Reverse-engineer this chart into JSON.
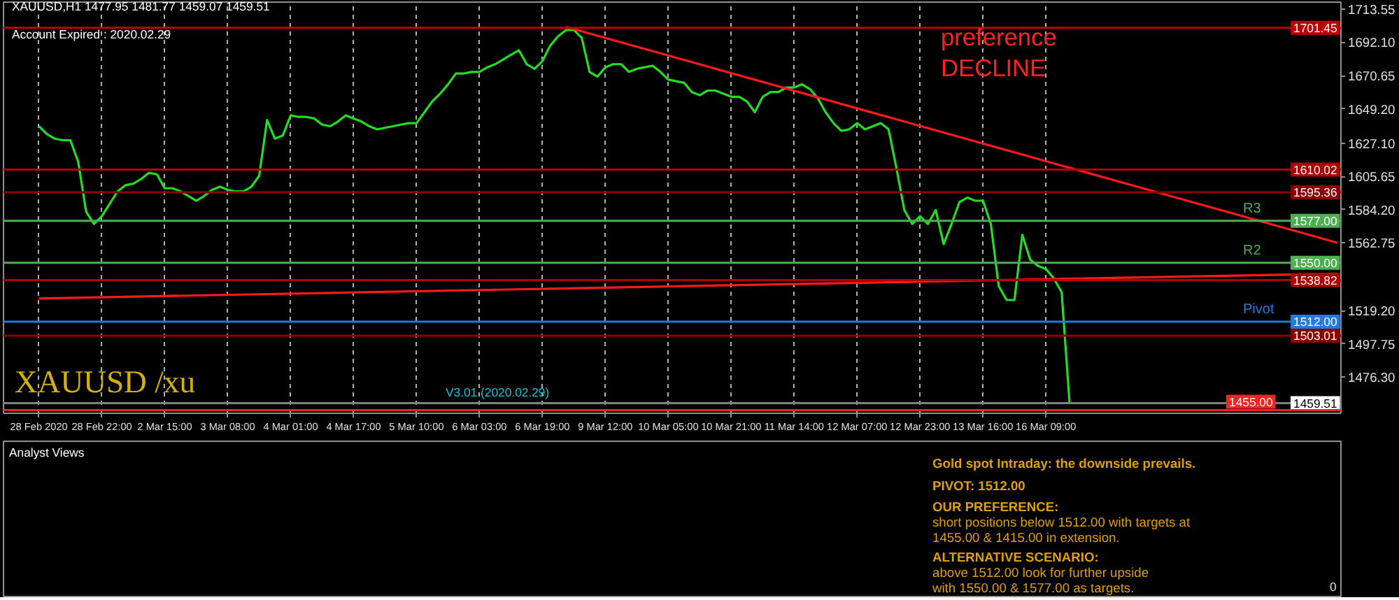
{
  "chart_data": [
    {
      "type": "line",
      "title": "XAUUSD,H1  1477.95 1481.77 1459.07 1459.51",
      "subtitle": "Account Expired : 2020.02.29",
      "annotations": [
        "XAUUSD /xu",
        "V3.01 (2020.02.29)",
        "preference",
        "DECLINE",
        {
          "text": "R3",
          "y": 1577.0
        },
        {
          "text": "R2",
          "y": 1550.0
        },
        {
          "text": "Pivot",
          "y": 1512.0
        }
      ],
      "categories": [
        "28 Feb 2020",
        null,
        null,
        null,
        null,
        null,
        null,
        null,
        "28 Feb 22:00",
        null,
        null,
        null,
        null,
        null,
        null,
        null,
        "2 Mar 15:00",
        null,
        null,
        null,
        null,
        null,
        null,
        null,
        "3 Mar 08:00",
        null,
        null,
        null,
        null,
        null,
        null,
        null,
        "4 Mar 01:00",
        null,
        null,
        null,
        null,
        null,
        null,
        null,
        "4 Mar 17:00",
        null,
        null,
        null,
        null,
        null,
        null,
        null,
        "5 Mar 10:00",
        null,
        null,
        null,
        null,
        null,
        null,
        null,
        "6 Mar 03:00",
        null,
        null,
        null,
        null,
        null,
        null,
        null,
        "6 Mar 19:00",
        null,
        null,
        null,
        null,
        null,
        null,
        null,
        "9 Mar 12:00",
        null,
        null,
        null,
        null,
        null,
        null,
        null,
        "10 Mar 05:00",
        null,
        null,
        null,
        null,
        null,
        null,
        null,
        "10 Mar 21:00",
        null,
        null,
        null,
        null,
        null,
        null,
        null,
        "11 Mar 14:00",
        null,
        null,
        null,
        null,
        null,
        null,
        null,
        "12 Mar 07:00",
        null,
        null,
        null,
        null,
        null,
        null,
        null,
        "12 Mar 23:00",
        null,
        null,
        null,
        null,
        null,
        null,
        null,
        "13 Mar 16:00",
        null,
        null,
        null,
        null,
        null,
        null,
        null,
        "16 Mar 09:00",
        null,
        null,
        null,
        null,
        null,
        null,
        null,
        null,
        null,
        null,
        null,
        null,
        null,
        null,
        null,
        null,
        null,
        null,
        null,
        null,
        null,
        null,
        null,
        null,
        null,
        null,
        null,
        null,
        null,
        null,
        null,
        null,
        null,
        null,
        null,
        null,
        null
      ],
      "series": [
        {
          "color": "#22dd22",
          "values": [
            1638,
            1633,
            1630,
            1629,
            1629,
            1615,
            1583,
            1575,
            1580,
            1588,
            1596,
            1600,
            1601,
            1604,
            1608,
            1607,
            1598,
            1598,
            1596,
            1593,
            1590,
            1593,
            1597,
            1599,
            1597,
            1596,
            1596,
            1599,
            1606,
            1642,
            1630,
            1632,
            1645,
            1644,
            1644,
            1643,
            1639,
            1638,
            1641,
            1645,
            1643,
            1641,
            1638,
            1636,
            1637,
            1638,
            1639,
            1640,
            1640,
            1647,
            1654,
            1659,
            1665,
            1672,
            1672,
            1673,
            1673,
            1676,
            1678,
            1681,
            1684,
            1687,
            1678,
            1675,
            1680,
            1690,
            1696,
            1700,
            1700,
            1695,
            1673,
            1670,
            1676,
            1678,
            1678,
            1673,
            1675,
            1676,
            1677,
            1673,
            1668,
            1667,
            1666,
            1660,
            1658,
            1661,
            1661,
            1659,
            1657,
            1657,
            1654,
            1647,
            1657,
            1660,
            1660,
            1663,
            1663,
            1665,
            1662,
            1656,
            1647,
            1640,
            1635,
            1636,
            1640,
            1636,
            1638,
            1640,
            1636,
            1611,
            1584,
            1575,
            1580,
            1575,
            1584,
            1562,
            1575,
            1589,
            1592,
            1590,
            1590,
            1575,
            1535,
            1526,
            1526,
            1568,
            1552,
            1548,
            1546,
            1540,
            1531,
            1460,
            null,
            null,
            null,
            null,
            null,
            null,
            null,
            null,
            null,
            null,
            null,
            null,
            null,
            null,
            null,
            null,
            null,
            null,
            null,
            null,
            null,
            null,
            null,
            null,
            null,
            null,
            null,
            null,
            null,
            null,
            null,
            null,
            null,
            null
          ]
        },
        {
          "color": "#ff1a1a",
          "values": [
            null,
            null,
            null,
            null,
            null,
            null,
            null,
            null,
            null,
            null,
            null,
            null,
            null,
            null,
            null,
            null,
            null,
            null,
            null,
            null,
            null,
            null,
            null,
            null,
            null,
            null,
            null,
            null,
            null,
            null,
            null,
            null,
            null,
            null,
            null,
            null,
            null,
            null,
            null,
            null,
            null,
            null,
            null,
            null,
            null,
            null,
            null,
            null,
            null,
            null,
            null,
            null,
            null,
            null,
            null,
            null,
            null,
            null,
            null,
            null,
            null,
            null,
            null,
            null,
            null,
            null,
            null,
            1702,
            null,
            null,
            null,
            null,
            null,
            null,
            null,
            null,
            null,
            null,
            null,
            null,
            null,
            null,
            null,
            null,
            null,
            null,
            null,
            null,
            null,
            null,
            null,
            null,
            null,
            null,
            null,
            null,
            null,
            null,
            null,
            null,
            null,
            null,
            null,
            null,
            null,
            null,
            null,
            null,
            null,
            null,
            null,
            null,
            null,
            null,
            null,
            null,
            null,
            null,
            null,
            null,
            null,
            null,
            null,
            null,
            null,
            null,
            null,
            null,
            null,
            null,
            null,
            null,
            null,
            null,
            null,
            null,
            null,
            null,
            null,
            null,
            null,
            null,
            null,
            null,
            null,
            null,
            null,
            null,
            null,
            null,
            null,
            null,
            null,
            null,
            null,
            null,
            null,
            null,
            null,
            null,
            null,
            null,
            null,
            null,
            null,
            1563
          ]
        },
        {
          "color": "#ff1a1a",
          "values": [
            1527,
            null,
            null,
            null,
            null,
            null,
            null,
            null,
            null,
            null,
            null,
            null,
            null,
            null,
            null,
            null,
            null,
            null,
            null,
            null,
            null,
            null,
            null,
            null,
            null,
            null,
            null,
            null,
            null,
            null,
            null,
            null,
            null,
            null,
            null,
            null,
            null,
            null,
            null,
            null,
            null,
            null,
            null,
            null,
            null,
            null,
            null,
            null,
            null,
            null,
            null,
            null,
            null,
            null,
            null,
            null,
            null,
            null,
            null,
            null,
            null,
            null,
            null,
            null,
            null,
            null,
            null,
            null,
            null,
            null,
            null,
            null,
            null,
            null,
            null,
            null,
            null,
            null,
            null,
            null,
            null,
            null,
            null,
            null,
            null,
            null,
            null,
            null,
            null,
            null,
            null,
            null,
            null,
            null,
            null,
            null,
            null,
            null,
            null,
            null,
            null,
            null,
            null,
            null,
            null,
            null,
            null,
            null,
            null,
            null,
            null,
            null,
            null,
            null,
            null,
            null,
            null,
            null,
            null,
            null,
            null,
            null,
            null,
            null,
            null,
            null,
            null,
            null,
            null,
            null,
            null,
            null,
            null,
            null,
            null,
            null,
            null,
            null,
            null,
            null,
            null,
            null,
            null,
            null,
            null,
            null,
            null,
            null,
            null,
            null,
            null,
            null,
            null,
            null,
            null,
            null,
            null,
            null,
            null,
            null,
            null,
            null,
            null,
            null,
            null,
            1543
          ]
        }
      ],
      "ref_lines": [
        {
          "axis": "y",
          "value": 1701.45,
          "label": "1701.45",
          "color": "#c00000"
        },
        {
          "axis": "y",
          "value": 1610.02,
          "label": "1610.02",
          "color": "#b00000"
        },
        {
          "axis": "y",
          "value": 1595.36,
          "label": "1595.36",
          "color": "#8b0000"
        },
        {
          "axis": "y",
          "value": 1577.0,
          "label": "1577.00",
          "color": "#4caf50"
        },
        {
          "axis": "y",
          "value": 1550.0,
          "label": "1550.00",
          "color": "#4caf50"
        },
        {
          "axis": "y",
          "value": 1538.82,
          "label": "1538.82",
          "color": "#b00000"
        },
        {
          "axis": "y",
          "value": 1512.0,
          "label": "1512.00",
          "color": "#1e7be0"
        },
        {
          "axis": "y",
          "value": 1503.01,
          "label": "1503.01",
          "color": "#8b0000"
        },
        {
          "axis": "y",
          "value": 1459.51,
          "label": "1459.51",
          "color": "#808080"
        },
        {
          "axis": "y",
          "value": 1455.0,
          "label": "1455.00",
          "color": "#ff2020"
        }
      ],
      "ylim": [
        1453,
        1718
      ],
      "yticks": [
        1713.55,
        {
          "value": 1692.1,
          "label": "1692.10"
        },
        1670.65,
        {
          "value": 1649.2,
          "label": "1649.20"
        },
        {
          "value": 1627.1,
          "label": "1627.10"
        },
        1605.65,
        {
          "value": 1584.2,
          "label": "1584.20"
        },
        1562.75,
        {
          "value": 1519.2,
          "label": "1519.20"
        },
        1497.75,
        {
          "value": 1476.3,
          "label": "1476.30"
        }
      ],
      "grid": "x",
      "line_style": "solid"
    },
    {
      "type": "other",
      "title": "Analyst Views",
      "annotations": [
        "Gold spot Intraday:     the downside prevails.",
        "PIVOT:   1512.00",
        "OUR PREFERENCE:",
        "short positions below 1512.00 with targets at",
        "1455.00 & 1415.00 in extension.",
        "ALTERNATIVE SCENARIO:",
        "above 1512.00 look for further upside",
        "with 1550.00 & 1577.00 as targets.",
        "0"
      ]
    }
  ]
}
